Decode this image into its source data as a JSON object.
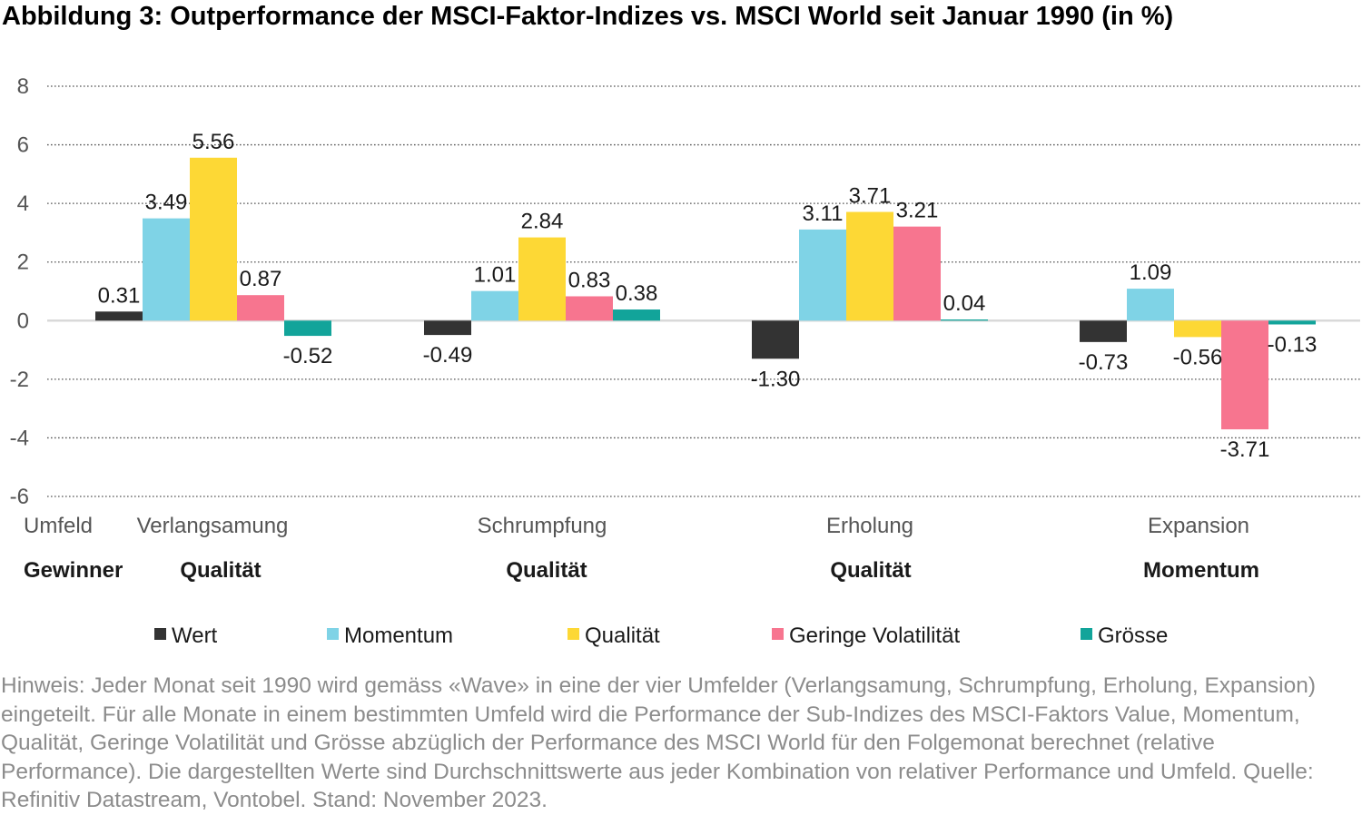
{
  "chart_data": {
    "type": "bar",
    "title": "Abbildung 3: Outperformance der MSCI-Faktor-Indizes vs. MSCI World seit Januar 1990 (in %)",
    "ylim": [
      -6,
      8
    ],
    "yticks": [
      "-6",
      "-4",
      "-2",
      "0",
      "2",
      "4",
      "6",
      "8"
    ],
    "grid": true,
    "legend_position": "bottom",
    "row_labels": {
      "environment": "Umfeld",
      "winner": "Gewinner"
    },
    "categories": [
      "Verlangsamung",
      "Schrumpfung",
      "Erholung",
      "Expansion"
    ],
    "winners": [
      "Qualität",
      "Qualität",
      "Qualität",
      "Momentum"
    ],
    "series": [
      {
        "name": "Wert",
        "color": "#333333",
        "values": [
          0.31,
          -0.49,
          -1.3,
          -0.73
        ],
        "labels": [
          "0.31",
          "-0.49",
          "-1.30",
          "-0.73"
        ]
      },
      {
        "name": "Momentum",
        "color": "#7fd3e6",
        "values": [
          3.49,
          1.01,
          3.11,
          1.09
        ],
        "labels": [
          "3.49",
          "1.01",
          "3.11",
          "1.09"
        ]
      },
      {
        "name": "Qualität",
        "color": "#fdd835",
        "values": [
          5.56,
          2.84,
          3.71,
          -0.56
        ],
        "labels": [
          "5.56",
          "2.84",
          "3.71",
          "-0.56"
        ]
      },
      {
        "name": "Geringe Volatilität",
        "color": "#f7758f",
        "values": [
          0.87,
          0.83,
          3.21,
          -3.71
        ],
        "labels": [
          "0.87",
          "0.83",
          "3.21",
          "-3.71"
        ]
      },
      {
        "name": "Grösse",
        "color": "#12a49a",
        "values": [
          -0.52,
          0.38,
          0.04,
          -0.13
        ],
        "labels": [
          "-0.52",
          "0.38",
          "0.04",
          "-0.13"
        ]
      }
    ]
  },
  "note": "Hinweis: Jeder Monat seit 1990 wird gemäss «Wave» in eine der vier Umfelder (Verlangsamung, Schrumpfung, Erholung, Expansion) eingeteilt. Für alle Monate in einem bestimmten Umfeld wird die Performance der Sub-Indizes des MSCI-Faktors Value, Momentum, Qualität, Geringe Volatilität und Grösse abzüglich der Performance des MSCI World für den Folgemonat berechnet (relative Performance). Die dargestellten Werte sind Durchschnittswerte aus jeder Kombination von relativer Performance und Umfeld. Quelle: Refinitiv Datastream, Vontobel. Stand: November 2023.",
  "colors": {
    "grid": "#555555",
    "zero_line": "#d9d9d9",
    "axis_text": "#555555",
    "note_text": "#8c8c8c"
  }
}
